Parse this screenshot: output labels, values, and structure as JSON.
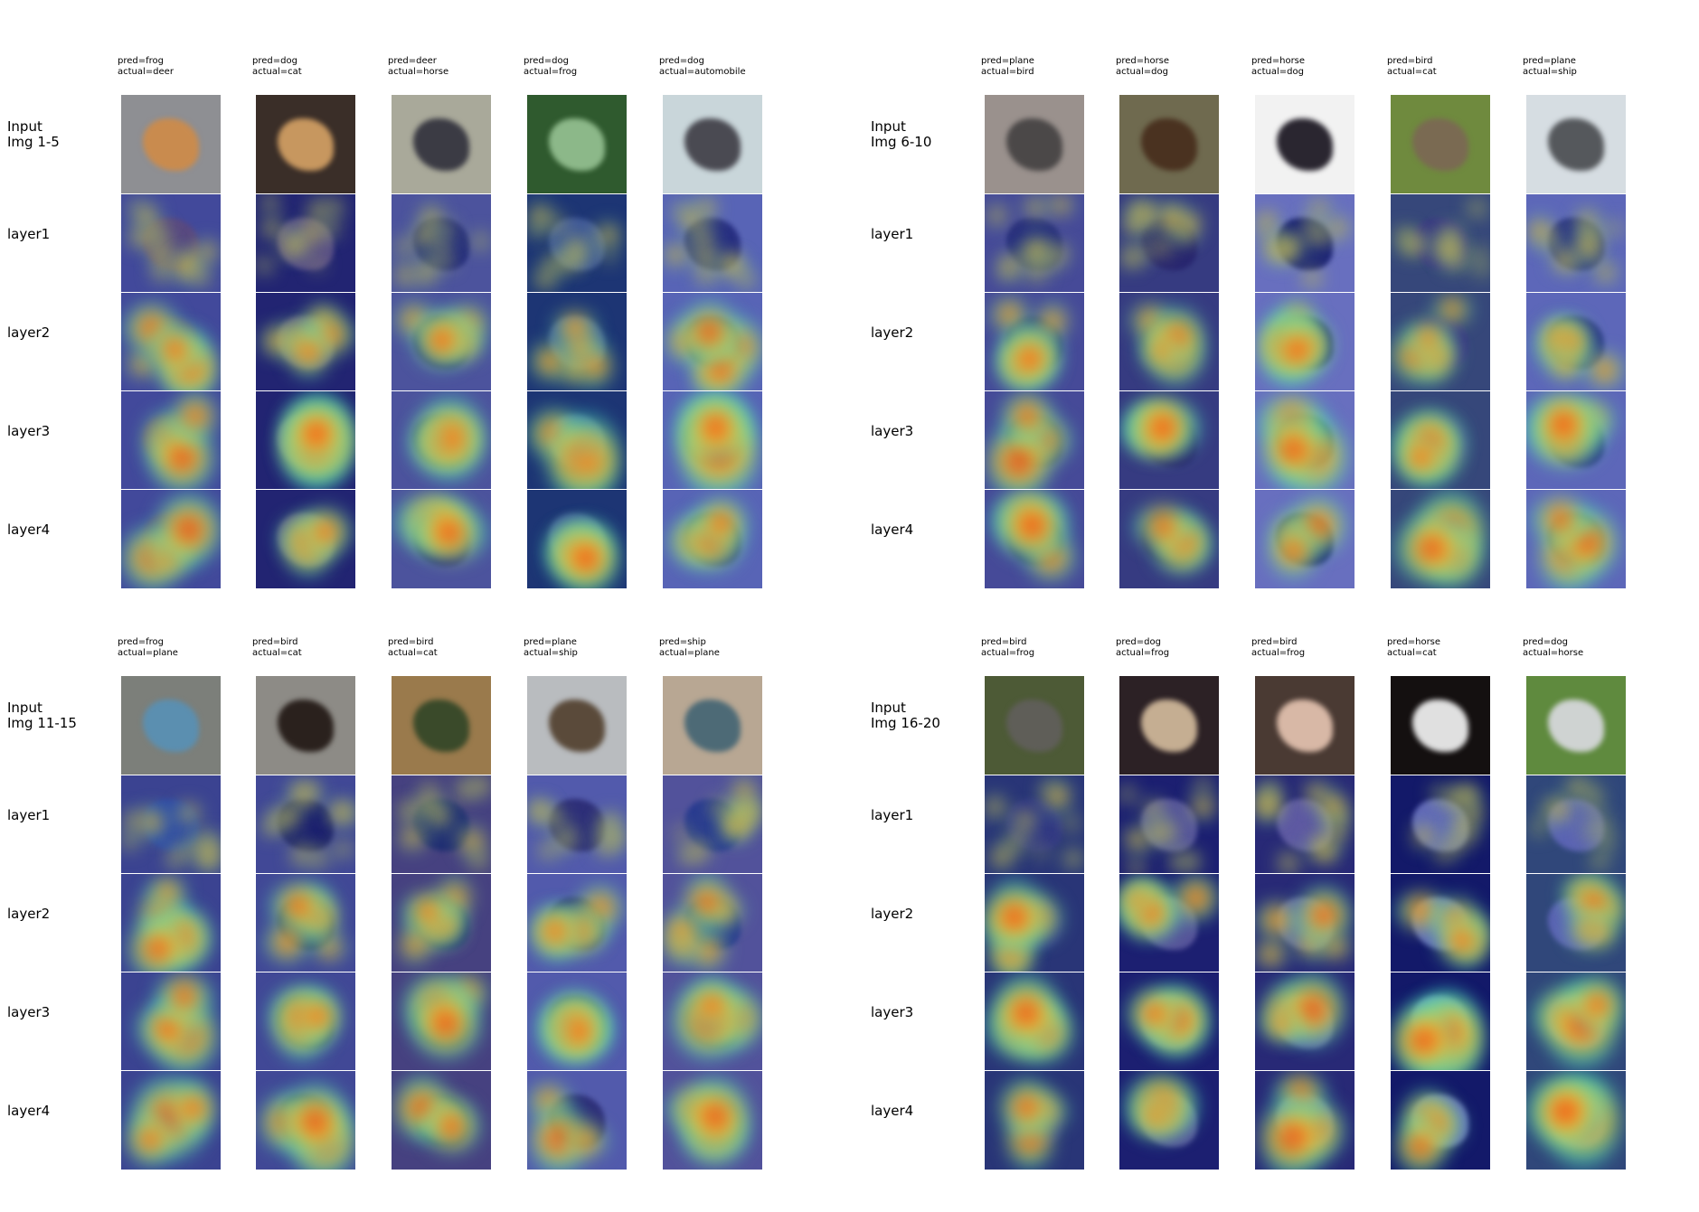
{
  "row_labels": [
    "Input\nImg {range}",
    "layer1",
    "layer2",
    "layer3",
    "layer4"
  ],
  "panels": [
    {
      "range": "1-5",
      "images": [
        {
          "pred": "frog",
          "actual": "deer",
          "caption": "pred=frog\nactual=deer",
          "scene": "#8e8f93",
          "subject": "#c98b4e"
        },
        {
          "pred": "dog",
          "actual": "cat",
          "caption": "pred=dog\nactual=cat",
          "scene": "#3a2e28",
          "subject": "#c7975f"
        },
        {
          "pred": "deer",
          "actual": "horse",
          "caption": "pred=deer\nactual=horse",
          "scene": "#a9a99a",
          "subject": "#3b3b44"
        },
        {
          "pred": "dog",
          "actual": "frog",
          "caption": "pred=dog\nactual=frog",
          "scene": "#2f5a2e",
          "subject": "#8cb889"
        },
        {
          "pred": "dog",
          "actual": "automobile",
          "caption": "pred=dog\nactual=automobile",
          "scene": "#c9d6da",
          "subject": "#4a4a52"
        }
      ]
    },
    {
      "range": "6-10",
      "images": [
        {
          "pred": "plane",
          "actual": "bird",
          "caption": "pred=plane\nactual=bird",
          "scene": "#9a918d",
          "subject": "#4b4848"
        },
        {
          "pred": "horse",
          "actual": "dog",
          "caption": "pred=horse\nactual=dog",
          "scene": "#6f6a4f",
          "subject": "#4a3220"
        },
        {
          "pred": "horse",
          "actual": "dog",
          "caption": "pred=horse\nactual=dog",
          "scene": "#f2f2f2",
          "subject": "#2a2630"
        },
        {
          "pred": "bird",
          "actual": "cat",
          "caption": "pred=bird\nactual=cat",
          "scene": "#6f8a3e",
          "subject": "#7a6a52"
        },
        {
          "pred": "plane",
          "actual": "ship",
          "caption": "pred=plane\nactual=ship",
          "scene": "#d6dde2",
          "subject": "#55585c"
        }
      ]
    },
    {
      "range": "11-15",
      "images": [
        {
          "pred": "frog",
          "actual": "plane",
          "caption": "pred=frog\nactual=plane",
          "scene": "#7c7f7a",
          "subject": "#5b8fb0"
        },
        {
          "pred": "bird",
          "actual": "cat",
          "caption": "pred=bird\nactual=cat",
          "scene": "#8d8b86",
          "subject": "#2a211d"
        },
        {
          "pred": "bird",
          "actual": "cat",
          "caption": "pred=bird\nactual=cat",
          "scene": "#9a7a4c",
          "subject": "#3a4a2a"
        },
        {
          "pred": "plane",
          "actual": "ship",
          "caption": "pred=plane\nactual=ship",
          "scene": "#b9bcbf",
          "subject": "#5a4a3a"
        },
        {
          "pred": "ship",
          "actual": "plane",
          "caption": "pred=ship\nactual=plane",
          "scene": "#b8a793",
          "subject": "#4d6a76"
        }
      ]
    },
    {
      "range": "16-20",
      "images": [
        {
          "pred": "bird",
          "actual": "frog",
          "caption": "pred=bird\nactual=frog",
          "scene": "#4d5a36",
          "subject": "#5f5e58"
        },
        {
          "pred": "dog",
          "actual": "frog",
          "caption": "pred=dog\nactual=frog",
          "scene": "#2c2125",
          "subject": "#c5ae92"
        },
        {
          "pred": "bird",
          "actual": "frog",
          "caption": "pred=bird\nactual=frog",
          "scene": "#4a3a33",
          "subject": "#d8b8a6"
        },
        {
          "pred": "horse",
          "actual": "cat",
          "caption": "pred=horse\nactual=cat",
          "scene": "#141010",
          "subject": "#e0e0e0"
        },
        {
          "pred": "dog",
          "actual": "horse",
          "caption": "pred=dog\nactual=horse",
          "scene": "#5f8a3e",
          "subject": "#cfd3d2"
        }
      ]
    }
  ]
}
